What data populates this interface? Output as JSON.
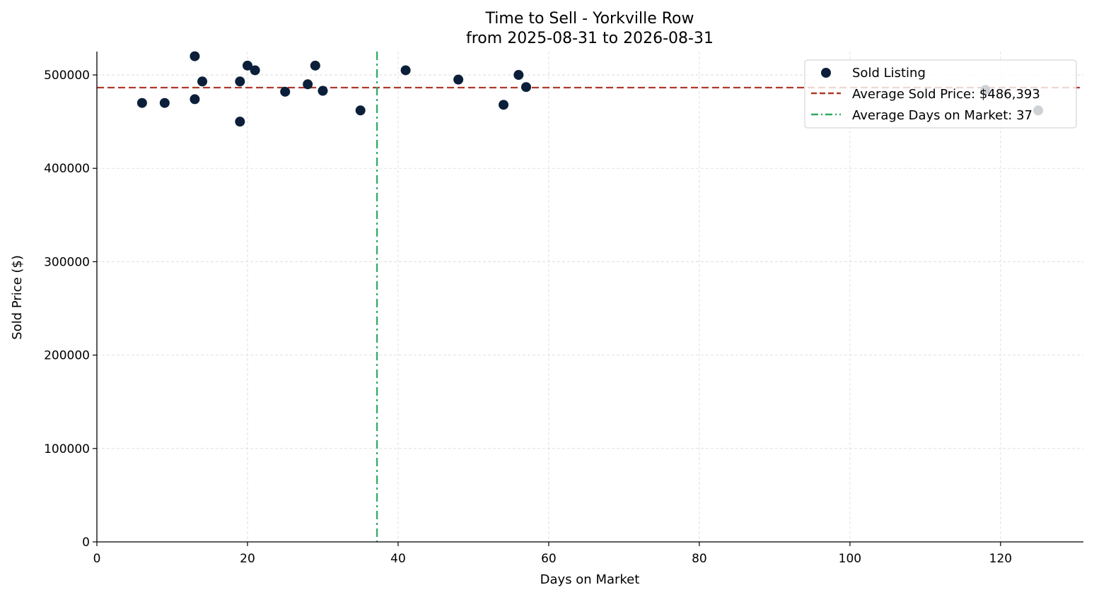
{
  "chart_data": {
    "type": "scatter",
    "title": "Time to Sell - Yorkville Row",
    "subtitle": "from 2025-08-31 to 2026-08-31",
    "xlabel": "Days on Market",
    "ylabel": "Sold Price ($)",
    "xlim": [
      0,
      131
    ],
    "ylim": [
      0,
      525000
    ],
    "x_ticks": [
      0,
      20,
      40,
      60,
      80,
      100,
      120
    ],
    "y_ticks": [
      0,
      100000,
      200000,
      300000,
      400000,
      500000
    ],
    "grid": true,
    "legend_position": "top-right",
    "series": [
      {
        "name": "Sold Listing",
        "color": "#0b1f3a",
        "points": [
          {
            "x": 6,
            "y": 470000
          },
          {
            "x": 9,
            "y": 470000
          },
          {
            "x": 13,
            "y": 520000
          },
          {
            "x": 13,
            "y": 474000
          },
          {
            "x": 14,
            "y": 493000
          },
          {
            "x": 19,
            "y": 493000
          },
          {
            "x": 19,
            "y": 450000
          },
          {
            "x": 20,
            "y": 510000
          },
          {
            "x": 21,
            "y": 505000
          },
          {
            "x": 25,
            "y": 482000
          },
          {
            "x": 28,
            "y": 490000
          },
          {
            "x": 29,
            "y": 510000
          },
          {
            "x": 30,
            "y": 483000
          },
          {
            "x": 35,
            "y": 462000
          },
          {
            "x": 41,
            "y": 505000
          },
          {
            "x": 48,
            "y": 495000
          },
          {
            "x": 54,
            "y": 468000
          },
          {
            "x": 56,
            "y": 500000
          },
          {
            "x": 57,
            "y": 487000
          },
          {
            "x": 118,
            "y": 484000
          },
          {
            "x": 125,
            "y": 462000
          }
        ]
      }
    ],
    "reference_lines": [
      {
        "orientation": "horizontal",
        "value": 486393,
        "label": "Average Sold Price: $486,393",
        "color": "#b0392b",
        "style": "dashed"
      },
      {
        "orientation": "vertical",
        "value": 37.2,
        "label": "Average Days on Market: 37",
        "color": "#2eaa62",
        "style": "dashdot"
      }
    ]
  }
}
